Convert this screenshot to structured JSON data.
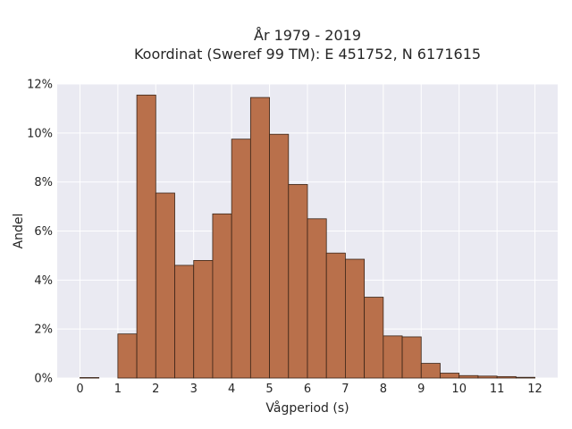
{
  "chart_data": {
    "type": "bar",
    "title": "År 1979 - 2019",
    "subtitle": "Koordinat (Sweref 99 TM): E 451752, N 6171615",
    "xlabel": "Vågperiod (s)",
    "ylabel": "Andel",
    "xlim": [
      -0.6,
      12.6
    ],
    "ylim": [
      0,
      12
    ],
    "xticks": [
      0,
      1,
      2,
      3,
      4,
      5,
      6,
      7,
      8,
      9,
      10,
      11,
      12
    ],
    "yticks": [
      0,
      2,
      4,
      6,
      8,
      10,
      12
    ],
    "ytick_suffix": "%",
    "bin_width": 0.5,
    "bin_edges_start": [
      0,
      1,
      1.5,
      2,
      2.5,
      3,
      3.5,
      4,
      4.5,
      5,
      5.5,
      6,
      6.5,
      7,
      7.5,
      8,
      8.5,
      9,
      9.5,
      10,
      10.5,
      11,
      11.5
    ],
    "values": [
      0.02,
      1.8,
      11.55,
      7.55,
      4.6,
      4.8,
      6.7,
      9.75,
      11.45,
      9.95,
      7.9,
      6.5,
      5.1,
      4.85,
      3.3,
      1.72,
      1.68,
      0.6,
      0.2,
      0.1,
      0.08,
      0.06,
      0.03
    ],
    "grid": true,
    "bar_color": "#b9704b",
    "bar_edge_color": "#3a2417",
    "background_color": "#eaeaf2"
  }
}
